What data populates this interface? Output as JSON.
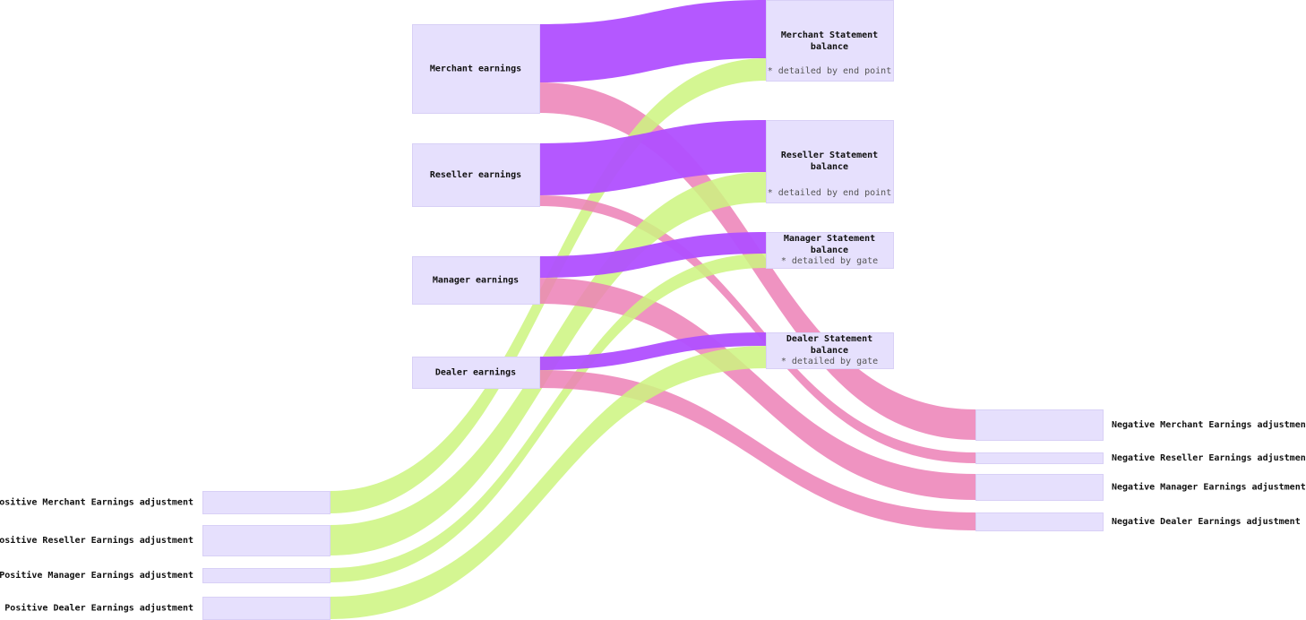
{
  "colors": {
    "node_fill": "#e6e0fd",
    "earnings_to_statement": "#b04fff",
    "earnings_to_negative": "#ec80b6",
    "positive_to_statement": "#cdf47f"
  },
  "nodes": [
    {
      "id": "pos_merchant",
      "label": "Positive Merchant Earnings adjustment"
    },
    {
      "id": "pos_reseller",
      "label": "Positive Reseller Earnings adjustment"
    },
    {
      "id": "pos_manager",
      "label": "Positive Manager Earnings adjustment"
    },
    {
      "id": "pos_dealer",
      "label": "Positive Dealer Earnings adjustment"
    },
    {
      "id": "merchant",
      "label": "Merchant earnings"
    },
    {
      "id": "reseller",
      "label": "Reseller earnings"
    },
    {
      "id": "manager",
      "label": "Manager earnings"
    },
    {
      "id": "dealer",
      "label": "Dealer earnings"
    },
    {
      "id": "merchant_stmt",
      "label": "Merchant Statement balance",
      "lines": [
        "Merchant Statement",
        "balance"
      ],
      "note": "* detailed by end point"
    },
    {
      "id": "reseller_stmt",
      "label": "Reseller Statement balance",
      "lines": [
        "Reseller Statement",
        "balance"
      ],
      "note": "* detailed by end point"
    },
    {
      "id": "manager_stmt",
      "label": "Manager Statement balance",
      "lines": [
        "Manager Statement",
        "balance"
      ],
      "note": "* detailed by gate"
    },
    {
      "id": "dealer_stmt",
      "label": "Dealer Statement balance",
      "lines": [
        "Dealer Statement",
        "balance"
      ],
      "note": "* detailed by gate"
    },
    {
      "id": "neg_merchant",
      "label": "Negative Merchant Earnings adjustment"
    },
    {
      "id": "neg_reseller",
      "label": "Negative Reseller Earnings adjustment"
    },
    {
      "id": "neg_manager",
      "label": "Negative Manager Earnings adjustment"
    },
    {
      "id": "neg_dealer",
      "label": "Negative Dealer Earnings adjustment"
    }
  ],
  "links": [
    {
      "source": "merchant",
      "target": "merchant_stmt",
      "value": 65,
      "kind": "earnings_to_statement"
    },
    {
      "source": "merchant",
      "target": "neg_merchant",
      "value": 34,
      "kind": "earnings_to_negative"
    },
    {
      "source": "pos_merchant",
      "target": "merchant_stmt",
      "value": 25,
      "kind": "positive_to_statement"
    },
    {
      "source": "reseller",
      "target": "reseller_stmt",
      "value": 58,
      "kind": "earnings_to_statement"
    },
    {
      "source": "reseller",
      "target": "neg_reseller",
      "value": 12,
      "kind": "earnings_to_negative"
    },
    {
      "source": "pos_reseller",
      "target": "reseller_stmt",
      "value": 34,
      "kind": "positive_to_statement"
    },
    {
      "source": "manager",
      "target": "manager_stmt",
      "value": 24,
      "kind": "earnings_to_statement"
    },
    {
      "source": "manager",
      "target": "neg_manager",
      "value": 29,
      "kind": "earnings_to_negative"
    },
    {
      "source": "pos_manager",
      "target": "manager_stmt",
      "value": 16,
      "kind": "positive_to_statement"
    },
    {
      "source": "dealer",
      "target": "dealer_stmt",
      "value": 15,
      "kind": "earnings_to_statement"
    },
    {
      "source": "dealer",
      "target": "neg_dealer",
      "value": 20,
      "kind": "earnings_to_negative"
    },
    {
      "source": "pos_dealer",
      "target": "dealer_stmt",
      "value": 25,
      "kind": "positive_to_statement"
    }
  ]
}
